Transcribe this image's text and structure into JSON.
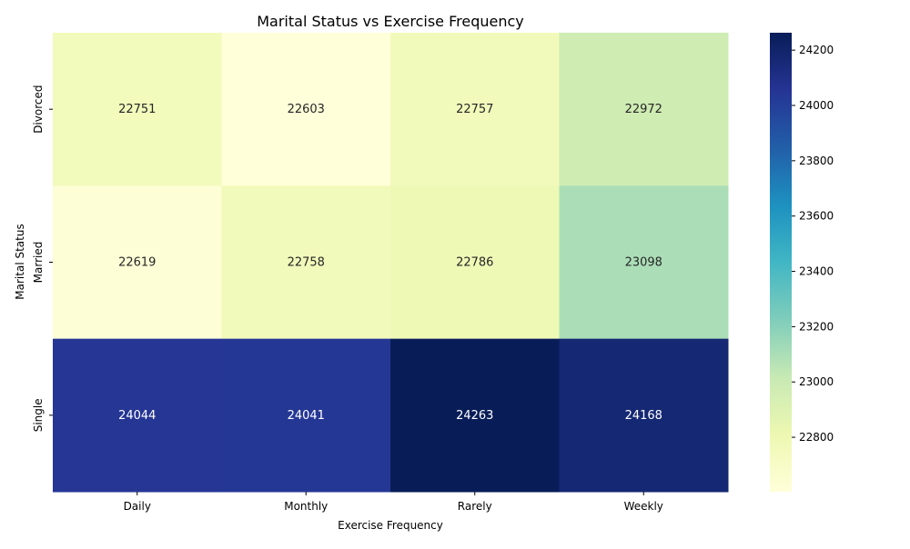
{
  "chart_data": {
    "type": "heatmap",
    "title": "Marital Status vs Exercise Frequency",
    "xlabel": "Exercise Frequency",
    "ylabel": "Marital Status",
    "x_categories": [
      "Daily",
      "Monthly",
      "Rarely",
      "Weekly"
    ],
    "y_categories": [
      "Divorced",
      "Married",
      "Single"
    ],
    "values": [
      [
        22751,
        22603,
        22757,
        22972
      ],
      [
        22619,
        22758,
        22786,
        23098
      ],
      [
        24044,
        24041,
        24263,
        24168
      ]
    ],
    "color_range": [
      22603,
      24263
    ],
    "colormap": "YlGnBu",
    "colorbar_ticks": [
      22800,
      23000,
      23200,
      23400,
      23600,
      23800,
      24000,
      24200
    ]
  }
}
